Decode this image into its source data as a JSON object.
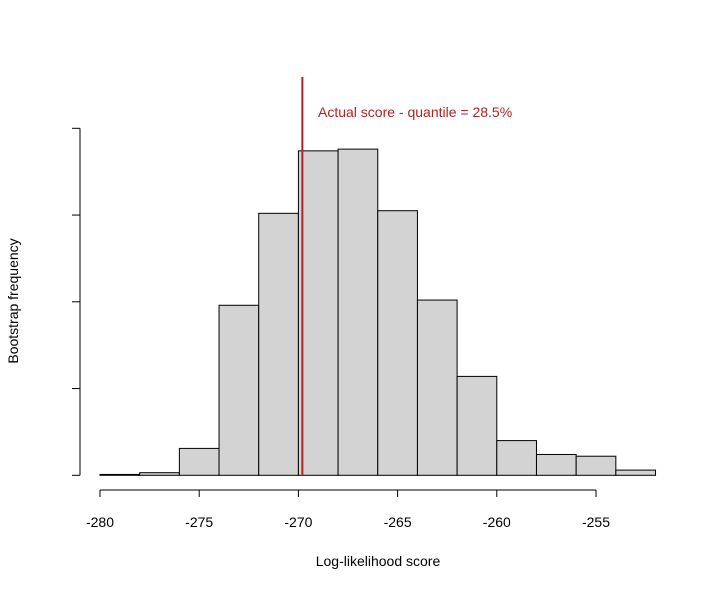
{
  "chart_data": {
    "type": "bar",
    "subtype": "histogram",
    "xlabel": "Log-likelihood score",
    "ylabel": "Bootstrap frequency",
    "bin_edges": [
      -280,
      -278,
      -276,
      -274,
      -272,
      -270,
      -268,
      -266,
      -264,
      -262,
      -260,
      -258,
      -256,
      -254,
      -252
    ],
    "values": [
      0.01,
      0.03,
      0.31,
      1.96,
      3.02,
      3.74,
      3.76,
      3.05,
      2.02,
      1.14,
      0.4,
      0.24,
      0.22,
      0.06
    ],
    "xlim": [
      -280,
      -252
    ],
    "ylim": [
      0,
      4
    ],
    "x_ticks": [
      -280,
      -275,
      -270,
      -265,
      -260,
      -255
    ],
    "x_tick_labels": [
      "-280",
      "-275",
      "-270",
      "-265",
      "-260",
      "-255"
    ],
    "y_ticks": [
      0,
      1,
      2,
      3,
      4
    ],
    "y_tick_labels_shown": false,
    "grid": false,
    "bar_fill": "#d3d3d3",
    "bar_stroke": "#000000",
    "reference_line": {
      "x": -269.8,
      "color": "#b22222"
    },
    "annotation": {
      "text": "Actual score - quantile = 28.5%",
      "color": "#b22222"
    }
  }
}
